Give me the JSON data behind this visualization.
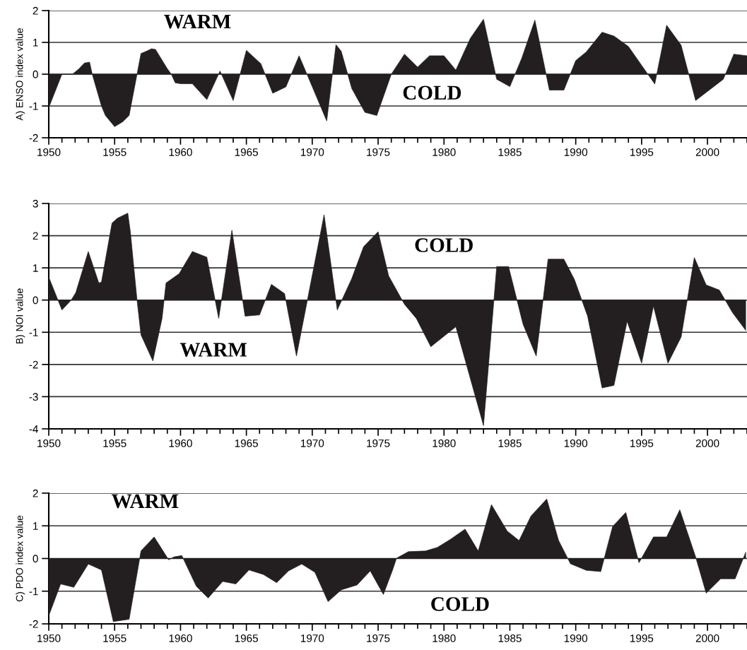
{
  "chart_data": [
    {
      "type": "area",
      "ylabel": "A) ENSO index value",
      "xlim": [
        1950,
        2003
      ],
      "ylim": [
        -2,
        2
      ],
      "yticks": [
        -2,
        -1,
        0,
        1,
        2
      ],
      "grid": "y",
      "legend": false,
      "xticks": [
        1950,
        {
          "value": 1951,
          "label": null
        },
        {
          "value": 1952,
          "label": null
        },
        {
          "value": 1953,
          "label": null
        },
        {
          "value": 1954,
          "label": null
        },
        1955,
        {
          "value": 1956,
          "label": null
        },
        {
          "value": 1957,
          "label": null
        },
        {
          "value": 1958,
          "label": null
        },
        {
          "value": 1959,
          "label": null
        },
        1960,
        {
          "value": 1961,
          "label": null
        },
        {
          "value": 1962,
          "label": null
        },
        {
          "value": 1963,
          "label": null
        },
        {
          "value": 1964,
          "label": null
        },
        1965,
        {
          "value": 1966,
          "label": null
        },
        {
          "value": 1967,
          "label": null
        },
        {
          "value": 1968,
          "label": null
        },
        {
          "value": 1969,
          "label": null
        },
        1970,
        {
          "value": 1971,
          "label": null
        },
        {
          "value": 1972,
          "label": null
        },
        {
          "value": 1973,
          "label": null
        },
        {
          "value": 1974,
          "label": null
        },
        1975,
        {
          "value": 1976,
          "label": null
        },
        {
          "value": 1977,
          "label": null
        },
        {
          "value": 1978,
          "label": null
        },
        {
          "value": 1979,
          "label": null
        },
        1980,
        {
          "value": 1981,
          "label": null
        },
        {
          "value": 1982,
          "label": null
        },
        {
          "value": 1983,
          "label": null
        },
        {
          "value": 1984,
          "label": null
        },
        1985,
        {
          "value": 1986,
          "label": null
        },
        {
          "value": 1987,
          "label": null
        },
        {
          "value": 1988,
          "label": null
        },
        {
          "value": 1989,
          "label": null
        },
        1990,
        {
          "value": 1991,
          "label": null
        },
        {
          "value": 1992,
          "label": null
        },
        {
          "value": 1993,
          "label": null
        },
        {
          "value": 1994,
          "label": null
        },
        1995,
        {
          "value": 1996,
          "label": null
        },
        {
          "value": 1997,
          "label": null
        },
        {
          "value": 1998,
          "label": null
        },
        {
          "value": 1999,
          "label": null
        },
        2000,
        {
          "value": 2001,
          "label": null
        },
        {
          "value": 2002,
          "label": null
        },
        {
          "value": 2003,
          "label": null
        }
      ],
      "annotations": [
        "WARM",
        "COLD"
      ],
      "series": [
        {
          "color": "#231f20",
          "x": [
            1950,
            1951,
            1951.8,
            1952.3,
            1952.7,
            1953.1,
            1953.3,
            1954,
            1954.3,
            1955,
            1955.6,
            1956.1,
            1956.7,
            1957,
            1957.4,
            1957.8,
            1958.1,
            1959,
            1959.3,
            1959.6,
            1960,
            1960.9,
            1962,
            1963,
            1964,
            1965,
            1966.1,
            1967,
            1968,
            1969,
            1969.7,
            1971.1,
            1971.8,
            1972.2,
            1973,
            1974,
            1974.9,
            1976,
            1977,
            1978,
            1978.9,
            1980,
            1980.9,
            1982,
            1983,
            1984,
            1985,
            1985.9,
            1986.9,
            1988,
            1989.1,
            1990,
            1990.8,
            1992,
            1992.9,
            1994,
            1995,
            1996,
            1996.9,
            1998,
            1999.1,
            2001.2,
            2002,
            2003
          ],
          "values": [
            -1.05,
            0,
            0,
            0.17,
            0.35,
            0.38,
            0,
            -1.0,
            -1.3,
            -1.65,
            -1.5,
            -1.3,
            0,
            0.65,
            0.72,
            0.8,
            0.78,
            0.17,
            0,
            -0.27,
            -0.3,
            -0.3,
            -0.8,
            0.1,
            -0.83,
            0.75,
            0.33,
            -0.6,
            -0.4,
            0.58,
            -0.1,
            -1.47,
            0.93,
            0.72,
            -0.45,
            -1.2,
            -1.3,
            0,
            0.63,
            0.22,
            0.58,
            0.58,
            0.13,
            1.13,
            1.73,
            -0.16,
            -0.39,
            0.5,
            1.7,
            -0.5,
            -0.5,
            0.43,
            0.7,
            1.32,
            1.2,
            0.87,
            0.28,
            -0.31,
            1.54,
            0.91,
            -0.83,
            -0.16,
            0.63,
            0.58
          ]
        }
      ]
    },
    {
      "type": "area",
      "ylabel": "B) NOI value",
      "xlim": [
        1950,
        2003
      ],
      "ylim": [
        -4,
        3
      ],
      "yticks": [
        -4,
        -3,
        -2,
        -1,
        0,
        1,
        2,
        3
      ],
      "grid": "y",
      "legend": false,
      "xticks": [
        1950,
        {
          "value": 1951,
          "label": null
        },
        {
          "value": 1952,
          "label": null
        },
        {
          "value": 1953,
          "label": null
        },
        {
          "value": 1954,
          "label": null
        },
        1955,
        {
          "value": 1956,
          "label": null
        },
        {
          "value": 1957,
          "label": null
        },
        {
          "value": 1958,
          "label": null
        },
        {
          "value": 1959,
          "label": null
        },
        1960,
        {
          "value": 1961,
          "label": null
        },
        {
          "value": 1962,
          "label": null
        },
        {
          "value": 1963,
          "label": null
        },
        {
          "value": 1964,
          "label": null
        },
        1965,
        {
          "value": 1966,
          "label": null
        },
        {
          "value": 1967,
          "label": null
        },
        {
          "value": 1968,
          "label": null
        },
        {
          "value": 1969,
          "label": null
        },
        1970,
        {
          "value": 1971,
          "label": null
        },
        {
          "value": 1972,
          "label": null
        },
        {
          "value": 1973,
          "label": null
        },
        {
          "value": 1974,
          "label": null
        },
        1975,
        {
          "value": 1976,
          "label": null
        },
        {
          "value": 1977,
          "label": null
        },
        {
          "value": 1978,
          "label": null
        },
        {
          "value": 1979,
          "label": null
        },
        1980,
        {
          "value": 1981,
          "label": null
        },
        {
          "value": 1982,
          "label": null
        },
        {
          "value": 1983,
          "label": null
        },
        {
          "value": 1984,
          "label": null
        },
        1985,
        {
          "value": 1986,
          "label": null
        },
        {
          "value": 1987,
          "label": null
        },
        {
          "value": 1988,
          "label": null
        },
        {
          "value": 1989,
          "label": null
        },
        1990,
        {
          "value": 1991,
          "label": null
        },
        {
          "value": 1992,
          "label": null
        },
        {
          "value": 1993,
          "label": null
        },
        {
          "value": 1994,
          "label": null
        },
        1995,
        {
          "value": 1996,
          "label": null
        },
        {
          "value": 1997,
          "label": null
        },
        {
          "value": 1998,
          "label": null
        },
        {
          "value": 1999,
          "label": null
        },
        2000,
        {
          "value": 2001,
          "label": null
        },
        {
          "value": 2002,
          "label": null
        },
        {
          "value": 2003,
          "label": null
        }
      ],
      "annotations": [
        "COLD",
        "WARM"
      ],
      "series": [
        {
          "color": "#231f20",
          "x": [
            1950,
            1951,
            1951.7,
            1952.05,
            1953,
            1953.8,
            1954,
            1954.8,
            1955.2,
            1956,
            1956.2,
            1956.7,
            1957,
            1957.9,
            1958.6,
            1958.9,
            1959.9,
            1960.9,
            1962,
            1962.9,
            1963.9,
            1964.9,
            1966,
            1966.9,
            1967.9,
            1968.8,
            1970.9,
            1971.9,
            1973,
            1973.9,
            1975,
            1975.8,
            1977,
            1977.9,
            1979,
            1980.9,
            1983,
            1984,
            1984.9,
            1986,
            1987,
            1987.9,
            1989.1,
            1989.9,
            1990.9,
            1992,
            1992.9,
            1993.9,
            1995,
            1995.9,
            1997,
            1998,
            1999,
            1999.9,
            2000.9,
            2001.9,
            2002.9
          ],
          "values": [
            0.71,
            -0.31,
            0,
            0.23,
            1.51,
            0.53,
            0.56,
            2.39,
            2.54,
            2.7,
            2.1,
            0,
            -1.08,
            -1.89,
            -0.57,
            0.53,
            0.82,
            1.51,
            1.33,
            -0.57,
            2.17,
            -0.5,
            -0.46,
            0.49,
            0.2,
            -1.74,
            2.65,
            -0.31,
            0.67,
            1.66,
            2.12,
            0.75,
            -0.13,
            -0.57,
            -1.45,
            -0.83,
            -3.9,
            1.04,
            1.04,
            -0.75,
            -1.74,
            1.27,
            1.27,
            0.64,
            -0.5,
            -2.73,
            -2.65,
            -0.66,
            -1.96,
            -0.19,
            -1.96,
            -1.15,
            1.32,
            0.47,
            0.31,
            -0.39,
            -0.94
          ]
        }
      ]
    },
    {
      "type": "area",
      "ylabel": "C) PDO index value",
      "xlim": [
        1950,
        2003
      ],
      "ylim": [
        -2,
        2
      ],
      "yticks": [
        -2,
        -1,
        0,
        1,
        2
      ],
      "grid": "y",
      "legend": false,
      "xticks": [
        1950,
        {
          "value": 1951,
          "label": null
        },
        {
          "value": 1952,
          "label": null
        },
        {
          "value": 1953,
          "label": null
        },
        {
          "value": 1954,
          "label": null
        },
        1955,
        {
          "value": 1956,
          "label": null
        },
        {
          "value": 1957,
          "label": null
        },
        {
          "value": 1958,
          "label": null
        },
        {
          "value": 1959,
          "label": null
        },
        1960,
        {
          "value": 1961,
          "label": null
        },
        {
          "value": 1962,
          "label": null
        },
        {
          "value": 1963,
          "label": null
        },
        {
          "value": 1964,
          "label": null
        },
        1965,
        {
          "value": 1966,
          "label": null
        },
        {
          "value": 1967,
          "label": null
        },
        {
          "value": 1968,
          "label": null
        },
        {
          "value": 1969,
          "label": null
        },
        1970,
        {
          "value": 1971,
          "label": null
        },
        {
          "value": 1972,
          "label": null
        },
        {
          "value": 1973,
          "label": null
        },
        {
          "value": 1974,
          "label": null
        },
        1975,
        {
          "value": 1976,
          "label": null
        },
        {
          "value": 1977,
          "label": null
        },
        {
          "value": 1978,
          "label": null
        },
        {
          "value": 1979,
          "label": null
        },
        1980,
        {
          "value": 1981,
          "label": null
        },
        {
          "value": 1982,
          "label": null
        },
        {
          "value": 1983,
          "label": null
        },
        {
          "value": 1984,
          "label": null
        },
        1985,
        {
          "value": 1986,
          "label": null
        },
        {
          "value": 1987,
          "label": null
        },
        {
          "value": 1988,
          "label": null
        },
        {
          "value": 1989,
          "label": null
        },
        1990,
        {
          "value": 1991,
          "label": null
        },
        {
          "value": 1992,
          "label": null
        },
        {
          "value": 1993,
          "label": null
        },
        {
          "value": 1994,
          "label": null
        },
        1995,
        {
          "value": 1996,
          "label": null
        },
        {
          "value": 1997,
          "label": null
        },
        {
          "value": 1998,
          "label": null
        },
        {
          "value": 1999,
          "label": null
        },
        2000,
        {
          "value": 2001,
          "label": null
        },
        {
          "value": 2002,
          "label": null
        },
        {
          "value": 2003,
          "label": null
        }
      ],
      "annotations": [
        "WARM",
        "COLD"
      ],
      "series": [
        {
          "color": "#231f20",
          "x": [
            1950,
            1950.9,
            1951.9,
            1953,
            1954,
            1954.9,
            1956.1,
            1957,
            1958,
            1959.1,
            1959.5,
            1960.1,
            1961.2,
            1962.1,
            1963.2,
            1964.2,
            1965.2,
            1966.3,
            1967.3,
            1968.2,
            1969.2,
            1970.2,
            1971.2,
            1972.2,
            1973.4,
            1974.4,
            1975.4,
            1976.1,
            1976.4,
            1977.3,
            1978.6,
            1979.5,
            1980.5,
            1981.6,
            1982.6,
            1983.6,
            1984.8,
            1985.7,
            1986.6,
            1987.8,
            1988.7,
            1989.6,
            1990.8,
            1991.9,
            1992.8,
            1993.8,
            1994.8,
            1995.9,
            1996.9,
            1997.9,
            1999.1,
            1999.9,
            2001,
            2002.1,
            2002.9
          ],
          "values": [
            -1.75,
            -0.78,
            -0.88,
            -0.17,
            -0.35,
            -1.93,
            -1.86,
            0.23,
            0.66,
            -0.04,
            0.05,
            0.09,
            -0.85,
            -1.21,
            -0.7,
            -0.78,
            -0.35,
            -0.49,
            -0.74,
            -0.38,
            -0.17,
            -0.42,
            -1.32,
            -0.96,
            -0.81,
            -0.38,
            -1.1,
            -0.35,
            0.01,
            0.21,
            0.23,
            0.34,
            0.59,
            0.9,
            0.23,
            1.65,
            0.84,
            0.55,
            1.3,
            1.82,
            0.55,
            -0.16,
            -0.36,
            -0.4,
            0.98,
            1.41,
            -0.13,
            0.66,
            0.66,
            1.49,
            0.05,
            -1.06,
            -0.62,
            -0.62,
            0.19
          ]
        }
      ]
    }
  ]
}
